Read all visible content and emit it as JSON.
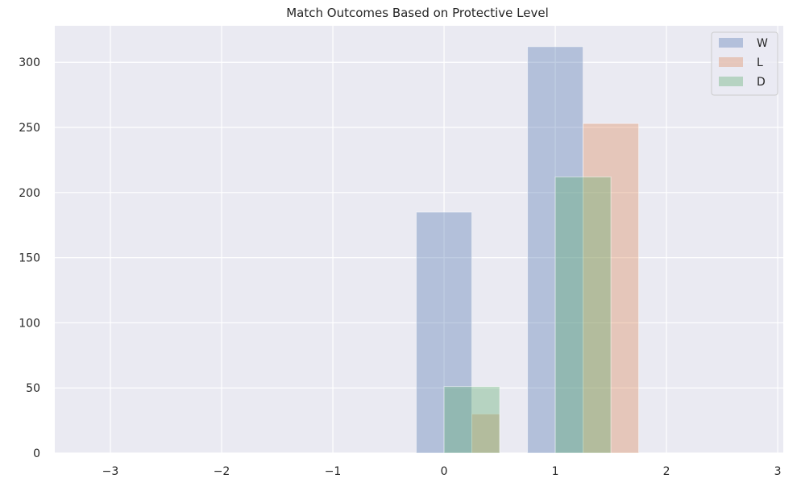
{
  "chart_data": {
    "type": "bar",
    "title": "Match Outcomes Based on Protective Level",
    "xlabel": "",
    "ylabel": "",
    "xlim": [
      -3.5,
      3.05
    ],
    "ylim": [
      0,
      328
    ],
    "xticks": [
      -3,
      -2,
      -1,
      0,
      1,
      2,
      3
    ],
    "xtick_labels": [
      "−3",
      "−2",
      "−1",
      "0",
      "1",
      "2",
      "3"
    ],
    "yticks": [
      0,
      50,
      100,
      150,
      200,
      250,
      300
    ],
    "ytick_labels": [
      "0",
      "50",
      "100",
      "150",
      "200",
      "250",
      "300"
    ],
    "grid": true,
    "legend_position": "top-right",
    "series": [
      {
        "name": "W",
        "color": "#4c72b0",
        "opacity": 0.35,
        "bars": [
          {
            "x_start": -0.25,
            "x_end": 0.25,
            "value": 185
          },
          {
            "x_start": 0.75,
            "x_end": 1.25,
            "value": 312
          }
        ]
      },
      {
        "name": "L",
        "color": "#dd8452",
        "opacity": 0.35,
        "bars": [
          {
            "x_start": 0.25,
            "x_end": 0.5,
            "value": 30
          },
          {
            "x_start": 1.25,
            "x_end": 1.75,
            "value": 253
          }
        ]
      },
      {
        "name": "D",
        "color": "#55a868",
        "opacity": 0.35,
        "bars": [
          {
            "x_start": 0.0,
            "x_end": 0.5,
            "value": 51
          },
          {
            "x_start": 1.0,
            "x_end": 1.5,
            "value": 212
          }
        ]
      }
    ]
  }
}
